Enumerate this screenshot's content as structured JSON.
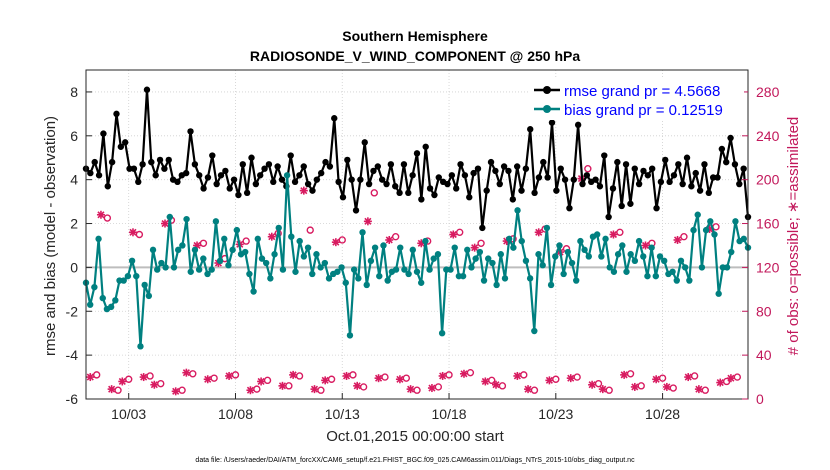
{
  "chart_data": {
    "type": "line",
    "title": "Southern Hemisphere",
    "subtitle": "RADIOSONDE_V_WIND_COMPONENT @ 250 hPa",
    "xlabel": "Oct.01,2015 00:00:00 start",
    "ylabel": "rmse and bias (model - observation)",
    "ylabel_right": "# of obs: o=possible; ∗=assimilated",
    "footnote": "data file: /Users/raeder/DAI/ATM_forcXX/CAM6_setup/f.e21.FHIST_BGC.f09_025.CAM6assim.011/Diags_NTrS_2015-10/obs_diag_output.nc",
    "x_range_days": [
      1.0,
      32.0
    ],
    "x_ticks": [
      {
        "day": 3,
        "label": "10/03"
      },
      {
        "day": 8,
        "label": "10/08"
      },
      {
        "day": 13,
        "label": "10/13"
      },
      {
        "day": 18,
        "label": "10/18"
      },
      {
        "day": 23,
        "label": "10/23"
      },
      {
        "day": 28,
        "label": "10/28"
      }
    ],
    "ylim_left": [
      -6,
      9
    ],
    "yticks_left": [
      "-6",
      "-4",
      "-2",
      "0",
      "2",
      "4",
      "6",
      "8"
    ],
    "ylim_right": [
      0,
      300
    ],
    "yticks_right": [
      "0",
      "40",
      "80",
      "120",
      "160",
      "200",
      "240",
      "280"
    ],
    "grid": true,
    "legend_position": "top-right",
    "legend": [
      {
        "label": "rmse grand pr = 4.5668",
        "color": "#000000"
      },
      {
        "label": "bias grand pr = 0.12519",
        "color": "#008080"
      }
    ],
    "series": [
      {
        "name": "rmse",
        "color": "#000000",
        "values": [
          4.5,
          4.3,
          4.8,
          4.2,
          6.1,
          3.7,
          4.8,
          7.0,
          5.5,
          5.7,
          4.5,
          4.5,
          3.9,
          4.7,
          8.1,
          4.8,
          4.2,
          4.9,
          4.5,
          4.9,
          4.0,
          3.9,
          4.2,
          4.3,
          6.2,
          4.7,
          4.2,
          3.6,
          4.1,
          5.1,
          3.8,
          4.2,
          4.4,
          3.6,
          4.0,
          3.3,
          4.7,
          3.4,
          5.0,
          3.8,
          4.2,
          4.5,
          4.7,
          3.9,
          4.6,
          4.0,
          3.7,
          5.1,
          3.9,
          4.2,
          4.6,
          3.8,
          3.5,
          4.0,
          4.3,
          4.8,
          4.6,
          6.8,
          3.9,
          3.2,
          4.9,
          4.0,
          2.6,
          4.0,
          5.7,
          3.8,
          4.4,
          4.6,
          4.0,
          3.8,
          4.7,
          3.7,
          3.4,
          4.7,
          3.4,
          4.2,
          5.2,
          3.1,
          5.5,
          3.6,
          3.3,
          4.1,
          3.9,
          3.8,
          4.2,
          3.6,
          4.7,
          4.2,
          3.2,
          4.3,
          4.5,
          1.8,
          3.5,
          4.8,
          4.4,
          3.8,
          4.6,
          4.4,
          3.1,
          4.6,
          3.5,
          4.5,
          6.3,
          3.4,
          4.1,
          4.8,
          4.1,
          6.6,
          3.5,
          4.5,
          4.0,
          2.7,
          4.0,
          6.5,
          3.8,
          4.2,
          3.9,
          4.0,
          3.7,
          5.1,
          2.3,
          3.6,
          4.8,
          2.8,
          4.7,
          2.9,
          4.5,
          3.8,
          4.4,
          4.2,
          4.5,
          2.7,
          3.9,
          4.9,
          3.9,
          4.2,
          4.7,
          3.8,
          5.0,
          3.7,
          4.3,
          3.5,
          4.7,
          3.4,
          4.1,
          4.1,
          5.4,
          4.8,
          5.9,
          4.7,
          3.8,
          4.5,
          2.3
        ]
      },
      {
        "name": "bias",
        "color": "#008080",
        "values": [
          -0.7,
          -1.7,
          -0.9,
          1.3,
          -1.4,
          -1.9,
          -1.8,
          -1.5,
          -0.6,
          -0.6,
          -0.4,
          0.3,
          -0.4,
          -3.6,
          -0.8,
          -1.3,
          0.8,
          -0.1,
          0.2,
          0.0,
          2.3,
          0.0,
          0.8,
          1.0,
          2.2,
          -0.2,
          0.8,
          -0.1,
          0.4,
          -0.3,
          -0.1,
          2.1,
          0.3,
          1.3,
          0.1,
          0.8,
          1.7,
          0.6,
          0.7,
          -0.3,
          -1.1,
          1.3,
          0.4,
          0.2,
          -0.5,
          0.6,
          1.8,
          -0.1,
          4.2,
          1.4,
          -0.2,
          1.2,
          0.5,
          0.9,
          -0.3,
          0.6,
          0.0,
          0.2,
          -0.5,
          -0.3,
          -0.2,
          0.0,
          -0.7,
          -3.1,
          -0.1,
          -0.5,
          1.6,
          -0.8,
          0.3,
          0.9,
          -0.4,
          1.0,
          -0.6,
          -0.2,
          -0.1,
          0.9,
          -0.1,
          -0.3,
          0.8,
          -0.2,
          -0.7,
          1.2,
          -0.1,
          0.4,
          0.6,
          -3.0,
          -0.1,
          -0.1,
          0.9,
          -0.4,
          -0.4,
          0.8,
          0.0,
          0.4,
          0.7,
          -0.6,
          0.4,
          0.2,
          -0.8,
          0.6,
          -0.5,
          1.3,
          0.9,
          2.6,
          1.2,
          0.3,
          -0.5,
          -2.9,
          0.6,
          0.1,
          1.8,
          -0.8,
          0.5,
          1.0,
          -0.3,
          0.7,
          0.2,
          -0.6,
          1.2,
          0.8,
          0.5,
          1.4,
          1.5,
          0.5,
          1.3,
          0.0,
          -0.2,
          0.6,
          1.0,
          -0.2,
          0.6,
          0.3,
          1.2,
          0.5,
          -0.4,
          0.9,
          -0.4,
          0.5,
          0.3,
          -0.3,
          -0.2,
          -0.6,
          0.3,
          0.0,
          -0.6,
          1.7,
          2.4,
          0.0,
          1.7,
          2.1,
          1.5,
          -1.2,
          0.0,
          0.0,
          0.7,
          2.1,
          1.2,
          1.3,
          0.9
        ]
      },
      {
        "name": "obs_possible",
        "color": "#d81b60",
        "marker": "o",
        "axis": "right",
        "day_values": [
          [
            1.5,
            22
          ],
          [
            2.0,
            165
          ],
          [
            2.5,
            8
          ],
          [
            3.0,
            18
          ],
          [
            3.5,
            150
          ],
          [
            4.0,
            21
          ],
          [
            4.5,
            14
          ],
          [
            5.0,
            163
          ],
          [
            5.5,
            8
          ],
          [
            6.0,
            23
          ],
          [
            6.5,
            142
          ],
          [
            7.0,
            19
          ],
          [
            7.5,
            128
          ],
          [
            8.0,
            22
          ],
          [
            8.5,
            144
          ],
          [
            9.0,
            9
          ],
          [
            9.5,
            17
          ],
          [
            10.0,
            151
          ],
          [
            10.5,
            12
          ],
          [
            11.0,
            21
          ],
          [
            11.5,
            154
          ],
          [
            12.0,
            8
          ],
          [
            12.5,
            18
          ],
          [
            13.0,
            145
          ],
          [
            13.5,
            22
          ],
          [
            14.0,
            11
          ],
          [
            14.5,
            188
          ],
          [
            15.0,
            20
          ],
          [
            15.5,
            148
          ],
          [
            16.0,
            19
          ],
          [
            16.5,
            8
          ],
          [
            17.0,
            144
          ],
          [
            17.5,
            11
          ],
          [
            18.0,
            22
          ],
          [
            18.5,
            152
          ],
          [
            19.0,
            24
          ],
          [
            19.5,
            142
          ],
          [
            20.0,
            17
          ],
          [
            20.5,
            12
          ],
          [
            21.0,
            146
          ],
          [
            21.5,
            22
          ],
          [
            22.0,
            8
          ],
          [
            22.5,
            155
          ],
          [
            23.0,
            18
          ],
          [
            23.5,
            137
          ],
          [
            24.0,
            20
          ],
          [
            24.5,
            210
          ],
          [
            25.0,
            14
          ],
          [
            25.5,
            8
          ],
          [
            26.0,
            152
          ],
          [
            26.5,
            23
          ],
          [
            27.0,
            12
          ],
          [
            27.5,
            142
          ],
          [
            28.0,
            19
          ],
          [
            28.5,
            10
          ],
          [
            29.0,
            148
          ],
          [
            29.5,
            21
          ],
          [
            30.0,
            8
          ],
          [
            30.5,
            157
          ],
          [
            31.0,
            16
          ],
          [
            31.5,
            20
          ]
        ]
      },
      {
        "name": "obs_assimilated",
        "color": "#d81b60",
        "marker": "*",
        "axis": "right",
        "day_values": [
          [
            1.2,
            20
          ],
          [
            1.7,
            168
          ],
          [
            2.2,
            9
          ],
          [
            2.7,
            16
          ],
          [
            3.2,
            152
          ],
          [
            3.7,
            20
          ],
          [
            4.2,
            13
          ],
          [
            4.7,
            160
          ],
          [
            5.2,
            7
          ],
          [
            5.7,
            24
          ],
          [
            6.2,
            140
          ],
          [
            6.7,
            18
          ],
          [
            7.2,
            124
          ],
          [
            7.7,
            21
          ],
          [
            8.2,
            141
          ],
          [
            8.7,
            8
          ],
          [
            9.2,
            16
          ],
          [
            9.7,
            148
          ],
          [
            10.2,
            12
          ],
          [
            10.7,
            22
          ],
          [
            11.2,
            190
          ],
          [
            11.7,
            9
          ],
          [
            12.2,
            17
          ],
          [
            12.7,
            143
          ],
          [
            13.2,
            21
          ],
          [
            13.7,
            12
          ],
          [
            14.2,
            162
          ],
          [
            14.7,
            19
          ],
          [
            15.2,
            145
          ],
          [
            15.7,
            18
          ],
          [
            16.2,
            9
          ],
          [
            16.7,
            142
          ],
          [
            17.2,
            10
          ],
          [
            17.7,
            21
          ],
          [
            18.2,
            150
          ],
          [
            18.7,
            23
          ],
          [
            19.2,
            138
          ],
          [
            19.7,
            16
          ],
          [
            20.2,
            13
          ],
          [
            20.7,
            144
          ],
          [
            21.2,
            21
          ],
          [
            21.7,
            9
          ],
          [
            22.2,
            152
          ],
          [
            22.7,
            17
          ],
          [
            23.2,
            134
          ],
          [
            23.7,
            19
          ],
          [
            24.2,
            201
          ],
          [
            24.7,
            13
          ],
          [
            25.2,
            9
          ],
          [
            25.7,
            150
          ],
          [
            26.2,
            22
          ],
          [
            26.7,
            11
          ],
          [
            27.2,
            140
          ],
          [
            27.7,
            18
          ],
          [
            28.2,
            11
          ],
          [
            28.7,
            145
          ],
          [
            29.2,
            20
          ],
          [
            29.7,
            9
          ],
          [
            30.2,
            155
          ],
          [
            30.7,
            15
          ],
          [
            31.2,
            19
          ]
        ]
      }
    ]
  }
}
